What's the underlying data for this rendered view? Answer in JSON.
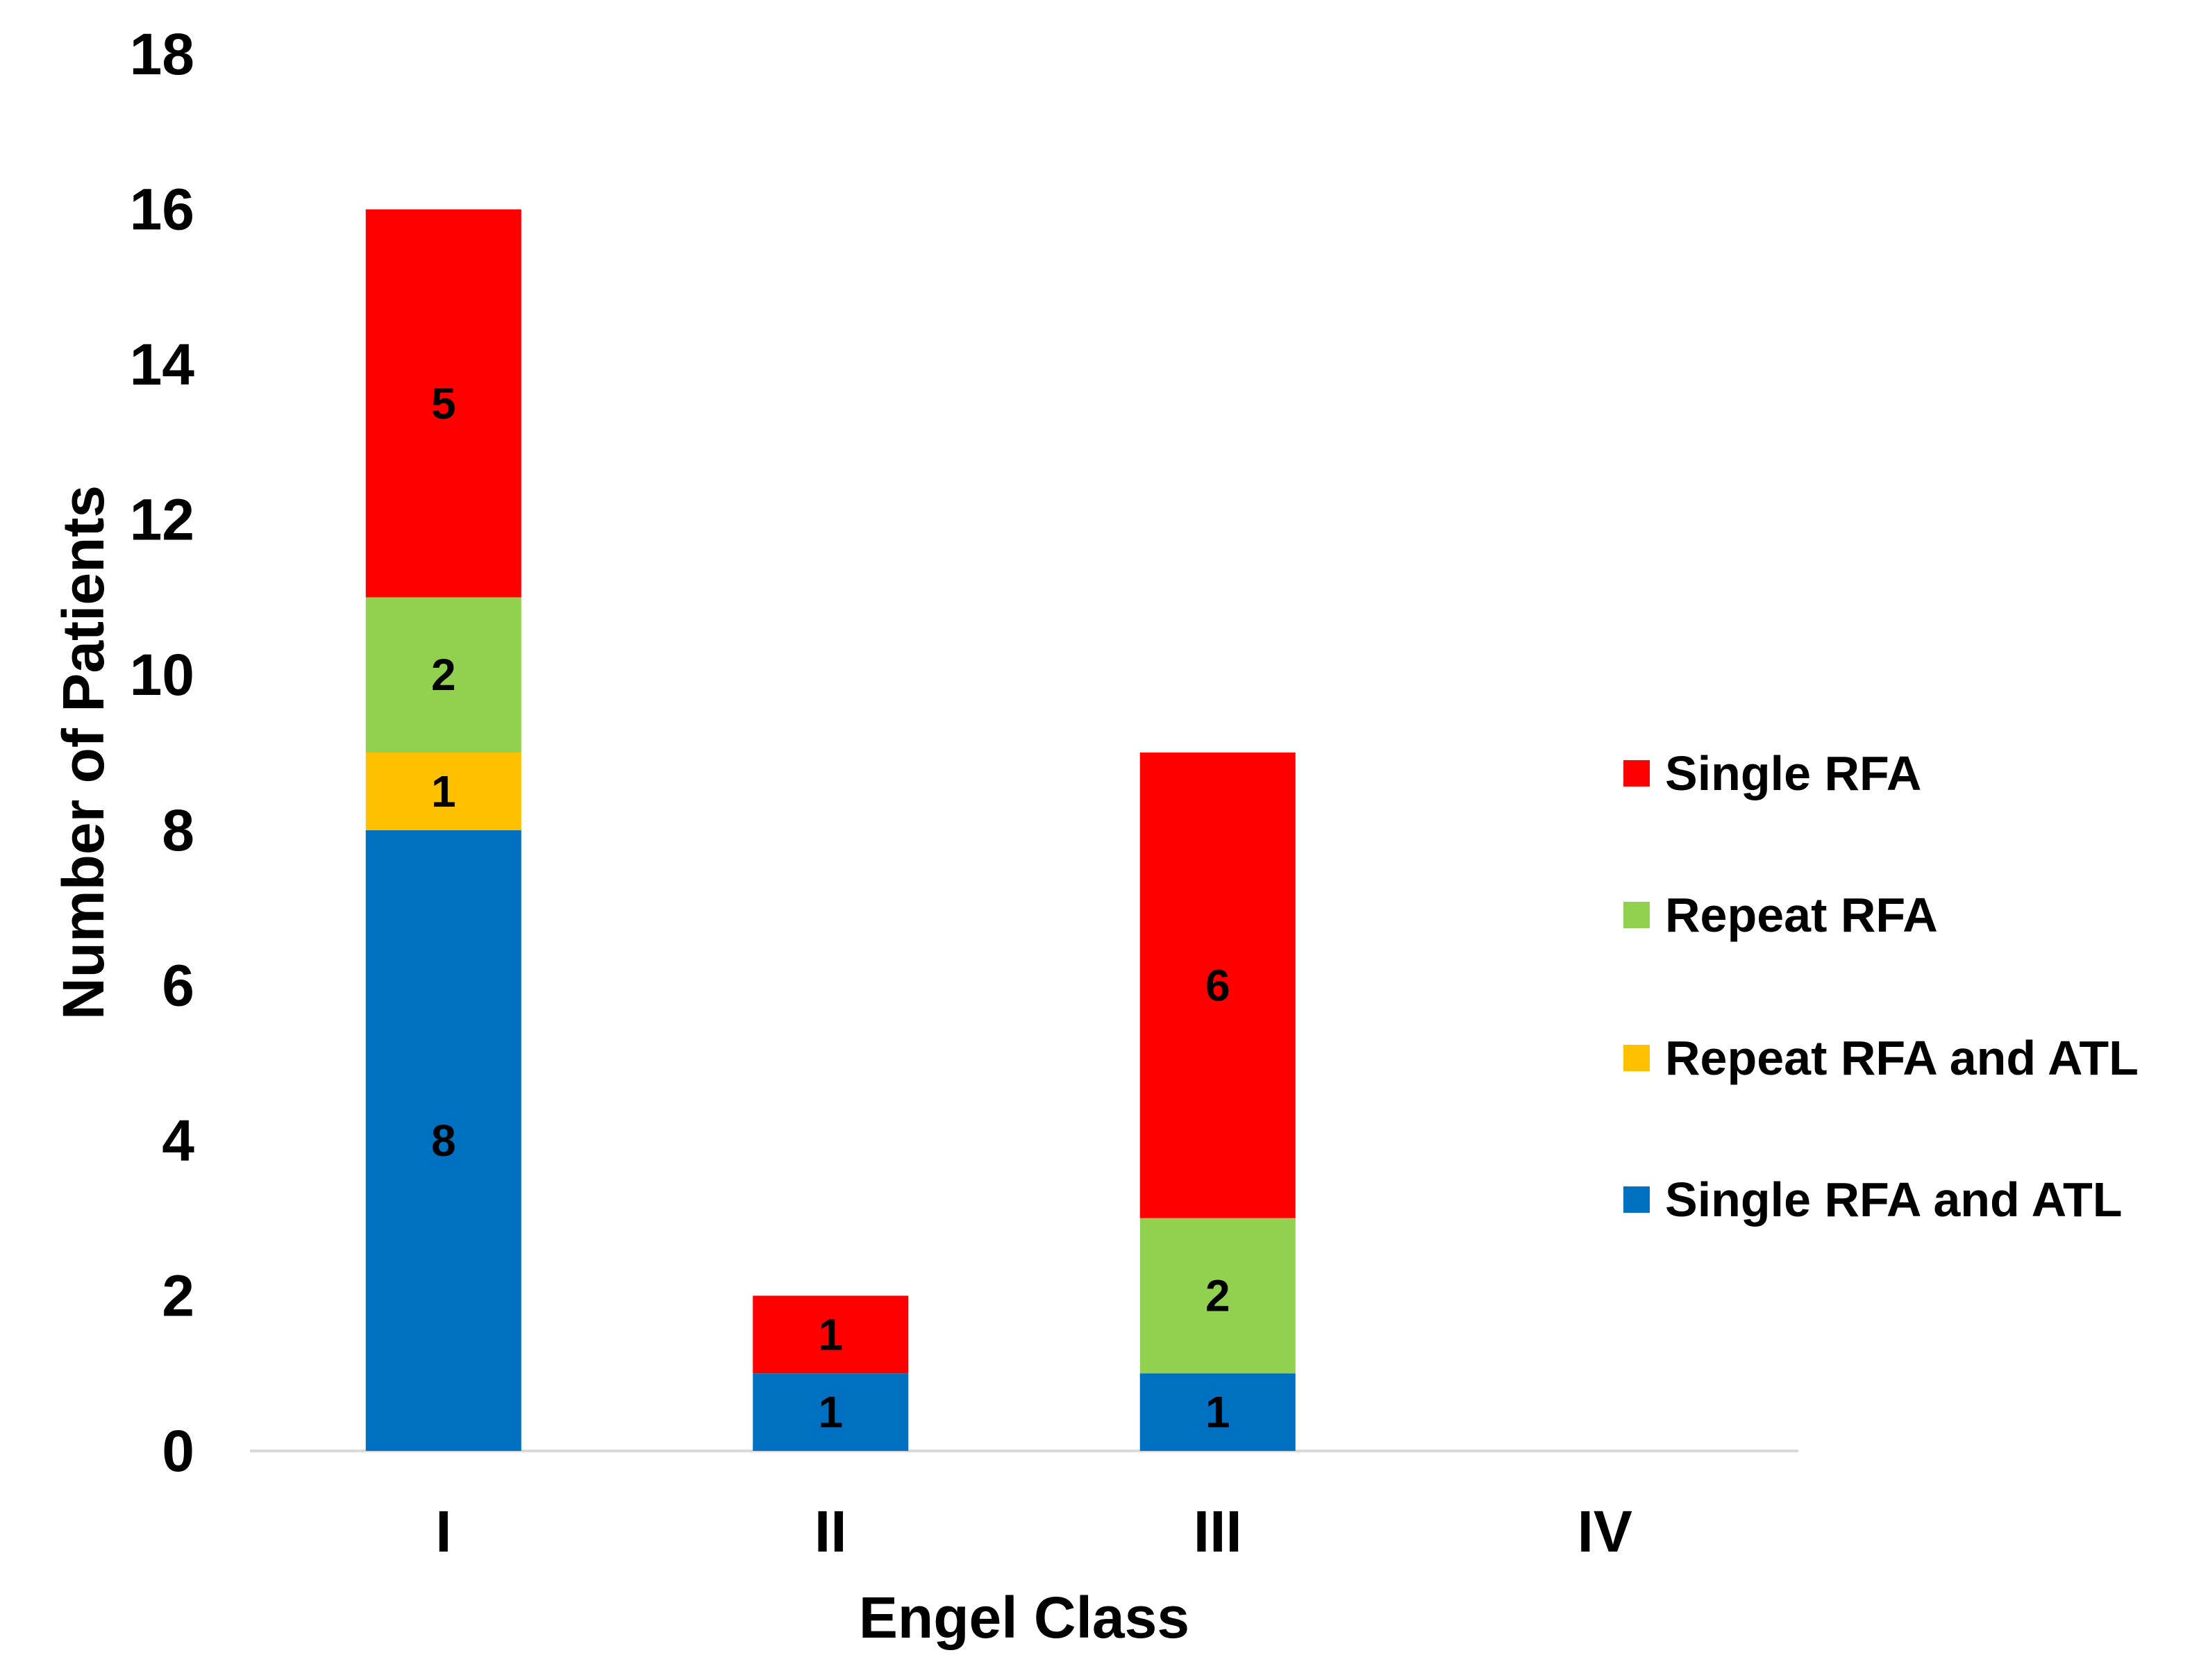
{
  "chart_data": {
    "type": "bar",
    "stacked": true,
    "title": "",
    "xlabel": "Engel Class",
    "ylabel": "Number of Patients",
    "categories": [
      "I",
      "II",
      "III",
      "IV"
    ],
    "ylim": [
      0,
      18
    ],
    "yticks": [
      0,
      2,
      4,
      6,
      8,
      10,
      12,
      14,
      16,
      18
    ],
    "grid": false,
    "legend_position": "right",
    "series": [
      {
        "name": "Single RFA and ATL",
        "color": "#0070C0",
        "values": [
          8,
          1,
          1,
          0
        ]
      },
      {
        "name": "Repeat RFA and ATL",
        "color": "#FFC000",
        "values": [
          1,
          0,
          0,
          0
        ]
      },
      {
        "name": "Repeat RFA",
        "color": "#92D050",
        "values": [
          2,
          0,
          2,
          0
        ]
      },
      {
        "name": "Single RFA",
        "color": "#FF0000",
        "values": [
          5,
          1,
          6,
          0
        ]
      }
    ],
    "legend_order": [
      "Single RFA",
      "Repeat RFA",
      "Repeat RFA and ATL",
      "Single RFA and ATL"
    ]
  }
}
